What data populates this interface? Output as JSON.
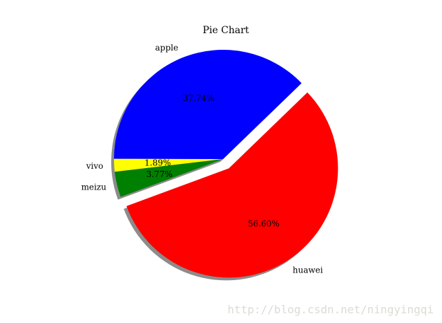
{
  "chart_data": {
    "type": "pie",
    "title": "Pie Chart",
    "labels": [
      "apple",
      "vivo",
      "meizu",
      "huawei"
    ],
    "values": [
      37.74,
      1.89,
      3.77,
      56.6
    ],
    "pct_labels": [
      "37.74%",
      "1.89%",
      "3.77%",
      "56.60%"
    ],
    "colors": [
      "#0000ff",
      "#ffff00",
      "#008000",
      "#ff0000"
    ],
    "explode": [
      0,
      0,
      0,
      0.1
    ],
    "shadow": true,
    "startangle": 44
  },
  "watermark": "http://blog.csdn.net/ningyingqi"
}
